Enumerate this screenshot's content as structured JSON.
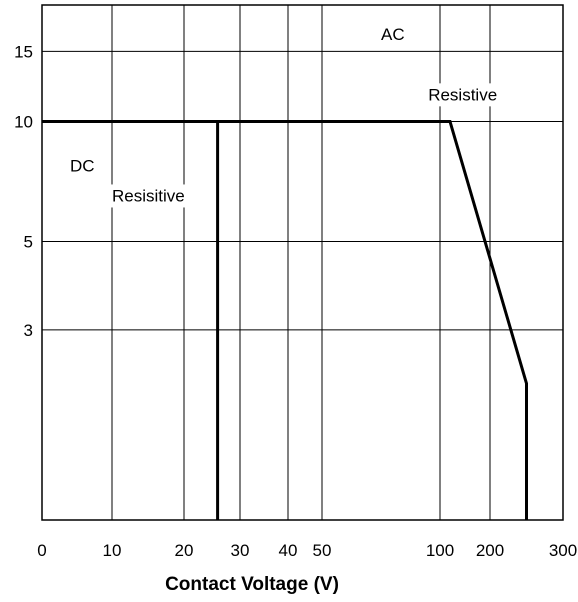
{
  "chart_data": {
    "type": "line",
    "title": "",
    "xlabel": "Contact Voltage (V)",
    "ylabel": "",
    "x_scale": "log",
    "y_scale": "log",
    "grid": true,
    "legend": "none",
    "x_ticks": [
      {
        "value": 0,
        "label": "0"
      },
      {
        "value": 10,
        "label": "10"
      },
      {
        "value": 20,
        "label": "20"
      },
      {
        "value": 30,
        "label": "30"
      },
      {
        "value": 40,
        "label": "40"
      },
      {
        "value": 50,
        "label": "50"
      },
      {
        "value": 100,
        "label": "100"
      },
      {
        "value": 200,
        "label": "200"
      },
      {
        "value": 300,
        "label": "300"
      }
    ],
    "y_ticks": [
      {
        "value": 3,
        "label": "3"
      },
      {
        "value": 5,
        "label": "5"
      },
      {
        "value": 10,
        "label": "10"
      },
      {
        "value": 15,
        "label": "15"
      }
    ],
    "series": [
      {
        "label": "AC Resistive",
        "points": [
          [
            0,
            10
          ],
          [
            120,
            10
          ],
          [
            250,
            2.2
          ],
          [
            250,
            1.0
          ]
        ]
      },
      {
        "label": "DC Resistive",
        "points": [
          [
            0,
            10
          ],
          [
            26,
            10
          ],
          [
            26,
            1.0
          ]
        ]
      }
    ],
    "annotations": [
      {
        "text": "AC",
        "at": [
          75,
          16
        ]
      },
      {
        "text": "Resistive",
        "at": [
          95,
          11.3
        ]
      },
      {
        "text": "DC",
        "at": [
          4,
          7.5
        ]
      },
      {
        "text": "Resisitive",
        "at": [
          10,
          6.3
        ]
      }
    ],
    "colors": {
      "line": "#000000",
      "grid": "#000000",
      "background": "#ffffff"
    }
  }
}
